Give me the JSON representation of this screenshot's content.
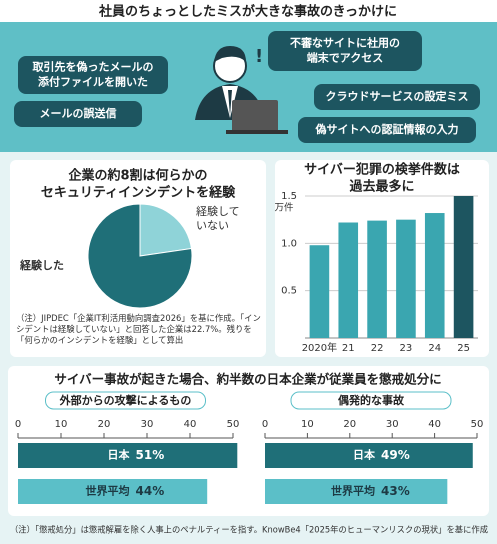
{
  "header": {
    "title": "社員のちょっとしたミスが大きな事故のきっかけに"
  },
  "bubbles": [
    [
      "取引先を偽ったメールの",
      "添付ファイルを開いた"
    ],
    [
      "メールの誤送信"
    ],
    [
      "不審なサイトに社用の",
      "端末でアクセス"
    ],
    [
      "クラウドサービスの設定ミス"
    ],
    [
      "偽サイトへの認証情報の入力"
    ]
  ],
  "chart_data": [
    {
      "type": "pie",
      "title": [
        "企業の約8割は何らかの",
        "セキュリティインシデントを経験"
      ],
      "categories": [
        [
          "経験した"
        ],
        [
          "経験して",
          "いない"
        ]
      ],
      "values": [
        77.3,
        22.7
      ],
      "colors": [
        "#1f6f78",
        "#8fd3d8"
      ],
      "note": "（注）JIPDEC「企業IT利活用動向調査2026」を基に作成。「インシデントは経験していない」と回答した企業は22.7%。残りを「何らかのインシデントを経験」として算出"
    },
    {
      "type": "bar",
      "title": [
        "サイバー犯罪の検挙件数は",
        "過去最多に"
      ],
      "y_label": "万件",
      "categories": [
        "2020年",
        "21",
        "22",
        "23",
        "24",
        "25"
      ],
      "values": [
        0.98,
        1.22,
        1.24,
        1.25,
        1.32,
        1.5
      ],
      "colors": [
        "#3aa6b0",
        "#3aa6b0",
        "#3aa6b0",
        "#3aa6b0",
        "#3aa6b0",
        "#1d5560"
      ],
      "ylim": [
        0,
        1.5
      ],
      "yticks": [
        {
          "value": 0.5,
          "label": "0.5"
        },
        {
          "value": 1,
          "label": "1.0"
        },
        1.5
      ],
      "grid": true
    },
    {
      "type": "hbar",
      "title": "外部からの攻撃によるもの",
      "categories": [
        "日本",
        "世界平均"
      ],
      "values": [
        51,
        44
      ],
      "value_labels": [
        "51%",
        "44%"
      ],
      "colors": [
        "#1f6f78",
        "#5bbfc8"
      ],
      "xlim": [
        0,
        50
      ],
      "xticks": [
        0,
        10,
        20,
        30,
        40,
        50
      ]
    },
    {
      "type": "hbar",
      "title": "偶発的な事故",
      "categories": [
        "日本",
        "世界平均"
      ],
      "values": [
        49,
        43
      ],
      "value_labels": [
        "49%",
        "43%"
      ],
      "colors": [
        "#1f6f78",
        "#5bbfc8"
      ],
      "xlim": [
        0,
        50
      ],
      "xticks": [
        0,
        10,
        20,
        30,
        40,
        50
      ]
    }
  ],
  "bottom_title": "サイバー事故が起きた場合、約半数の日本企業が従業員を懲戒処分に",
  "footnote": "（注）「懲戒処分」は懲戒解雇を除く人事上のペナルティーを指す。KnowBe4「2025年のヒューマンリスクの現状」を基に作成"
}
